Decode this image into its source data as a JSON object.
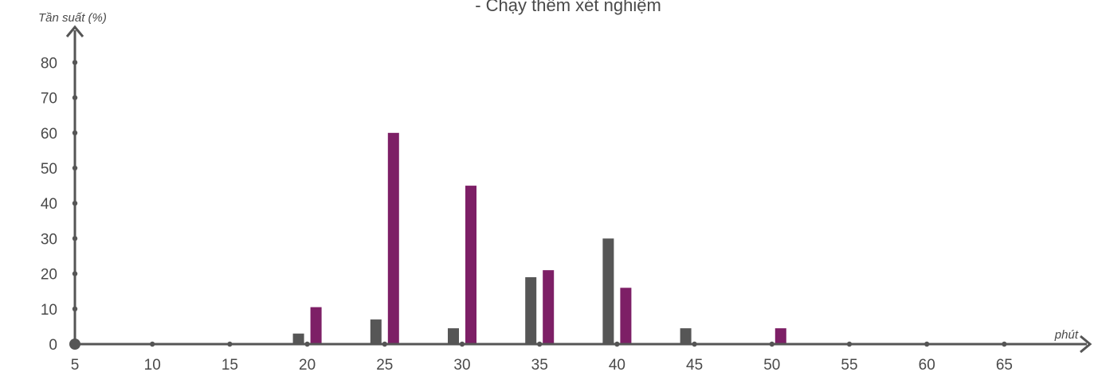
{
  "chart_data": {
    "type": "bar",
    "title": "- Chạy thêm xét nghiệm",
    "xlabel": "phút",
    "ylabel": "Tần suất (%)",
    "x_ticks": [
      5,
      10,
      15,
      20,
      25,
      30,
      35,
      40,
      45,
      50,
      55,
      60,
      65
    ],
    "y_ticks": [
      0,
      10,
      20,
      30,
      40,
      50,
      60,
      70,
      80
    ],
    "xlim": [
      5,
      69
    ],
    "ylim": [
      0,
      88
    ],
    "grid": false,
    "categories": [
      20,
      25,
      30,
      35,
      40,
      45,
      50
    ],
    "series": [
      {
        "color": "#565656",
        "values": [
          3,
          7,
          4.5,
          19,
          30,
          4.5,
          0
        ]
      },
      {
        "color": "#7d1f66",
        "values": [
          10.5,
          60,
          45,
          21,
          16,
          0,
          4.5
        ]
      }
    ]
  },
  "colors": {
    "axis": "#555555",
    "text": "#4a4a4a"
  }
}
